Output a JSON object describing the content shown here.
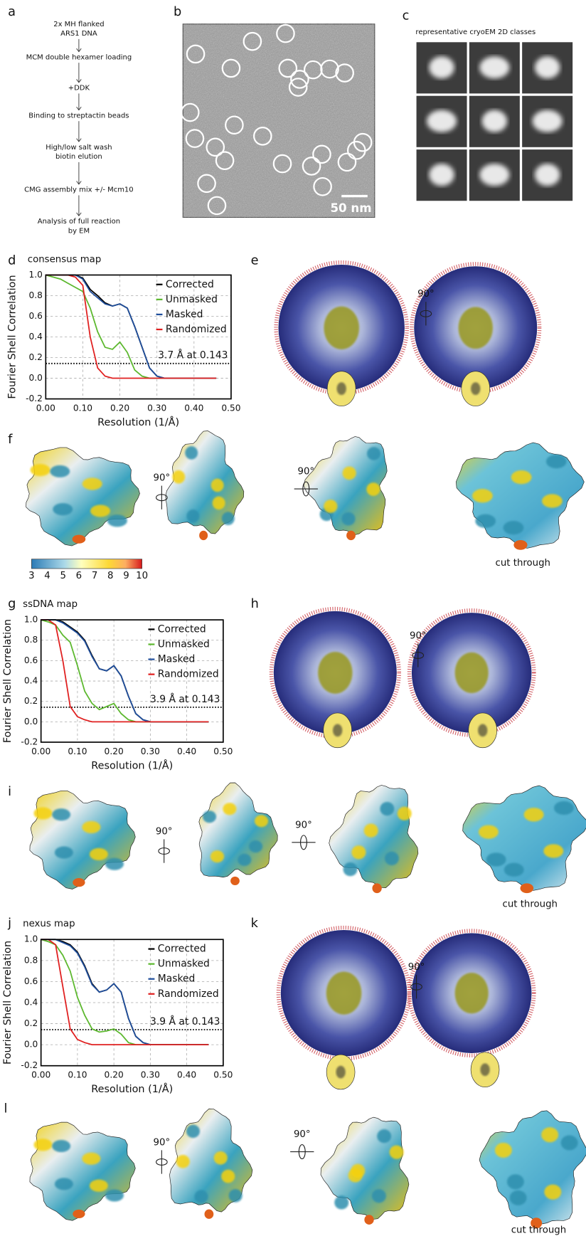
{
  "panel_labels": [
    "a",
    "b",
    "c",
    "d",
    "e",
    "f",
    "g",
    "h",
    "i",
    "j",
    "k",
    "l"
  ],
  "flowchart": {
    "steps": [
      [
        "2x MH flanked",
        "ARS1 DNA"
      ],
      [
        "MCM double hexamer loading"
      ],
      [
        "+DDK"
      ],
      [
        "Binding to streptactin beads"
      ],
      [
        "High/low salt wash",
        "biotin elution"
      ],
      [
        "CMG assembly mix +/- Mcm10"
      ],
      [
        "Analysis of full reaction",
        "by EM"
      ]
    ]
  },
  "micrograph": {
    "scale_bar": "50 nm"
  },
  "classes": {
    "caption": "representative cryoEM 2D classes"
  },
  "rotation_label": "90°",
  "cut_through_label": "cut through",
  "colorbar": {
    "ticks": [
      3,
      4,
      5,
      6,
      7,
      8,
      9,
      10
    ]
  },
  "chart_data": [
    {
      "type": "line",
      "title": "consensus map",
      "xlabel": "Resolution (1/Å)",
      "ylabel": "Fourier Shell Correlation",
      "x": [
        0,
        0.02,
        0.04,
        0.06,
        0.08,
        0.1,
        0.12,
        0.14,
        0.16,
        0.18,
        0.2,
        0.22,
        0.24,
        0.26,
        0.28,
        0.3,
        0.32,
        0.34,
        0.36,
        0.38,
        0.4,
        0.42,
        0.44,
        0.46
      ],
      "series": [
        {
          "name": "Corrected",
          "color": "#000000",
          "values": [
            1,
            1,
            1,
            1,
            1,
            0.97,
            0.86,
            0.8,
            0.73,
            0.7,
            0.72,
            0.68,
            0.5,
            0.3,
            0.1,
            0.02,
            0,
            0,
            0,
            0,
            0,
            0,
            0,
            0
          ]
        },
        {
          "name": "Unmasked",
          "color": "#5cb82e",
          "values": [
            1,
            0.98,
            0.96,
            0.92,
            0.88,
            0.84,
            0.68,
            0.45,
            0.3,
            0.28,
            0.35,
            0.25,
            0.08,
            0.02,
            0,
            0,
            0,
            0,
            0,
            0,
            0,
            0,
            0,
            0
          ]
        },
        {
          "name": "Masked",
          "color": "#1f4e9c",
          "values": [
            1,
            1,
            1,
            1,
            1,
            0.96,
            0.84,
            0.78,
            0.72,
            0.7,
            0.72,
            0.68,
            0.5,
            0.3,
            0.1,
            0.02,
            0,
            0,
            0,
            0,
            0,
            0,
            0,
            0
          ]
        },
        {
          "name": "Randomized",
          "color": "#e02020",
          "values": [
            1,
            1,
            1,
            1,
            0.98,
            0.9,
            0.4,
            0.1,
            0.02,
            0,
            0,
            0,
            0,
            0,
            0,
            0,
            0,
            0,
            0,
            0,
            0,
            0,
            0,
            0
          ]
        }
      ],
      "xlim": [
        0,
        0.5
      ],
      "ylim": [
        -0.2,
        1.0
      ],
      "xticks": [
        {
          "value": 0,
          "label": "0.00"
        },
        {
          "value": 0.1,
          "label": "0.10"
        },
        {
          "value": 0.2,
          "label": "0.20"
        },
        {
          "value": 0.3,
          "label": "0.30"
        },
        {
          "value": 0.4,
          "label": "0.40"
        },
        {
          "value": 0.5,
          "label": "0.50"
        }
      ],
      "yticks": [
        -0.2,
        {
          "value": 0,
          "label": "0.0"
        },
        0.2,
        0.4,
        0.6,
        0.8,
        {
          "value": 1,
          "label": "1.0"
        }
      ],
      "grid": true,
      "legend": "upper right",
      "threshold": 0.143,
      "annotation": "3.7 Å at 0.143"
    },
    {
      "type": "line",
      "title": "ssDNA map",
      "xlabel": "Resolution (1/Å)",
      "ylabel": "Fourier Shell Correlation",
      "x": [
        0,
        0.02,
        0.04,
        0.06,
        0.08,
        0.1,
        0.12,
        0.14,
        0.16,
        0.18,
        0.2,
        0.22,
        0.24,
        0.26,
        0.28,
        0.3,
        0.32,
        0.34,
        0.36,
        0.38,
        0.4,
        0.42,
        0.44,
        0.46
      ],
      "series": [
        {
          "name": "Corrected",
          "color": "#000000",
          "values": [
            1,
            1,
            1,
            0.98,
            0.93,
            0.88,
            0.8,
            0.65,
            0.52,
            0.5,
            0.55,
            0.45,
            0.25,
            0.08,
            0.02,
            0,
            0,
            0,
            0,
            0,
            0,
            0,
            0,
            0
          ]
        },
        {
          "name": "Unmasked",
          "color": "#5cb82e",
          "values": [
            1,
            0.98,
            0.95,
            0.85,
            0.78,
            0.55,
            0.3,
            0.18,
            0.12,
            0.15,
            0.18,
            0.08,
            0.02,
            0,
            0,
            0,
            0,
            0,
            0,
            0,
            0,
            0,
            0,
            0
          ]
        },
        {
          "name": "Masked",
          "color": "#1f4e9c",
          "values": [
            1,
            1,
            1,
            0.97,
            0.92,
            0.87,
            0.79,
            0.64,
            0.52,
            0.5,
            0.55,
            0.45,
            0.25,
            0.08,
            0.02,
            0,
            0,
            0,
            0,
            0,
            0,
            0,
            0,
            0
          ]
        },
        {
          "name": "Randomized",
          "color": "#e02020",
          "values": [
            1,
            1,
            0.95,
            0.6,
            0.15,
            0.05,
            0.02,
            0,
            0,
            0,
            0,
            0,
            0,
            0,
            0,
            0,
            0,
            0,
            0,
            0,
            0,
            0,
            0,
            0
          ]
        }
      ],
      "xlim": [
        0,
        0.5
      ],
      "ylim": [
        -0.2,
        1.0
      ],
      "xticks": [
        {
          "value": 0,
          "label": "0.00"
        },
        {
          "value": 0.1,
          "label": "0.10"
        },
        {
          "value": 0.2,
          "label": "0.20"
        },
        {
          "value": 0.3,
          "label": "0.30"
        },
        {
          "value": 0.4,
          "label": "0.40"
        },
        {
          "value": 0.5,
          "label": "0.50"
        }
      ],
      "yticks": [
        -0.2,
        {
          "value": 0,
          "label": "0.0"
        },
        0.2,
        0.4,
        0.6,
        0.8,
        {
          "value": 1,
          "label": "1.0"
        }
      ],
      "grid": true,
      "legend": "upper right",
      "threshold": 0.143,
      "annotation": "3.9 Å at 0.143"
    },
    {
      "type": "line",
      "title": "nexus map",
      "xlabel": "Resolution (1/Å)",
      "ylabel": "Fourier Shell Correlation",
      "x": [
        0,
        0.02,
        0.04,
        0.06,
        0.08,
        0.1,
        0.12,
        0.14,
        0.16,
        0.18,
        0.2,
        0.22,
        0.24,
        0.26,
        0.28,
        0.3,
        0.32,
        0.34,
        0.36,
        0.38,
        0.4,
        0.42,
        0.44,
        0.46
      ],
      "series": [
        {
          "name": "Corrected",
          "color": "#000000",
          "values": [
            1,
            1,
            1,
            0.98,
            0.95,
            0.88,
            0.75,
            0.58,
            0.5,
            0.52,
            0.58,
            0.5,
            0.25,
            0.08,
            0.02,
            0,
            0,
            0,
            0,
            0,
            0,
            0,
            0,
            0
          ]
        },
        {
          "name": "Unmasked",
          "color": "#5cb82e",
          "values": [
            1,
            0.98,
            0.95,
            0.85,
            0.7,
            0.45,
            0.28,
            0.15,
            0.12,
            0.13,
            0.15,
            0.1,
            0.02,
            0,
            0,
            0,
            0,
            0,
            0,
            0,
            0,
            0,
            0,
            0
          ]
        },
        {
          "name": "Masked",
          "color": "#1f4e9c",
          "values": [
            1,
            1,
            1,
            0.97,
            0.94,
            0.87,
            0.74,
            0.57,
            0.5,
            0.52,
            0.58,
            0.5,
            0.25,
            0.08,
            0.02,
            0,
            0,
            0,
            0,
            0,
            0,
            0,
            0,
            0
          ]
        },
        {
          "name": "Randomized",
          "color": "#e02020",
          "values": [
            1,
            1,
            0.95,
            0.55,
            0.15,
            0.05,
            0.02,
            0,
            0,
            0,
            0,
            0,
            0,
            0,
            0,
            0,
            0,
            0,
            0,
            0,
            0,
            0,
            0,
            0
          ]
        }
      ],
      "xlim": [
        0,
        0.5
      ],
      "ylim": [
        -0.2,
        1.0
      ],
      "xticks": [
        {
          "value": 0,
          "label": "0.00"
        },
        {
          "value": 0.1,
          "label": "0.10"
        },
        {
          "value": 0.2,
          "label": "0.20"
        },
        {
          "value": 0.3,
          "label": "0.30"
        },
        {
          "value": 0.4,
          "label": "0.40"
        },
        {
          "value": 0.5,
          "label": "0.50"
        }
      ],
      "yticks": [
        -0.2,
        {
          "value": 0,
          "label": "0.0"
        },
        0.2,
        0.4,
        0.6,
        0.8,
        {
          "value": 1,
          "label": "1.0"
        }
      ],
      "grid": true,
      "legend": "upper right",
      "threshold": 0.143,
      "annotation": "3.9 Å at 0.143"
    }
  ]
}
